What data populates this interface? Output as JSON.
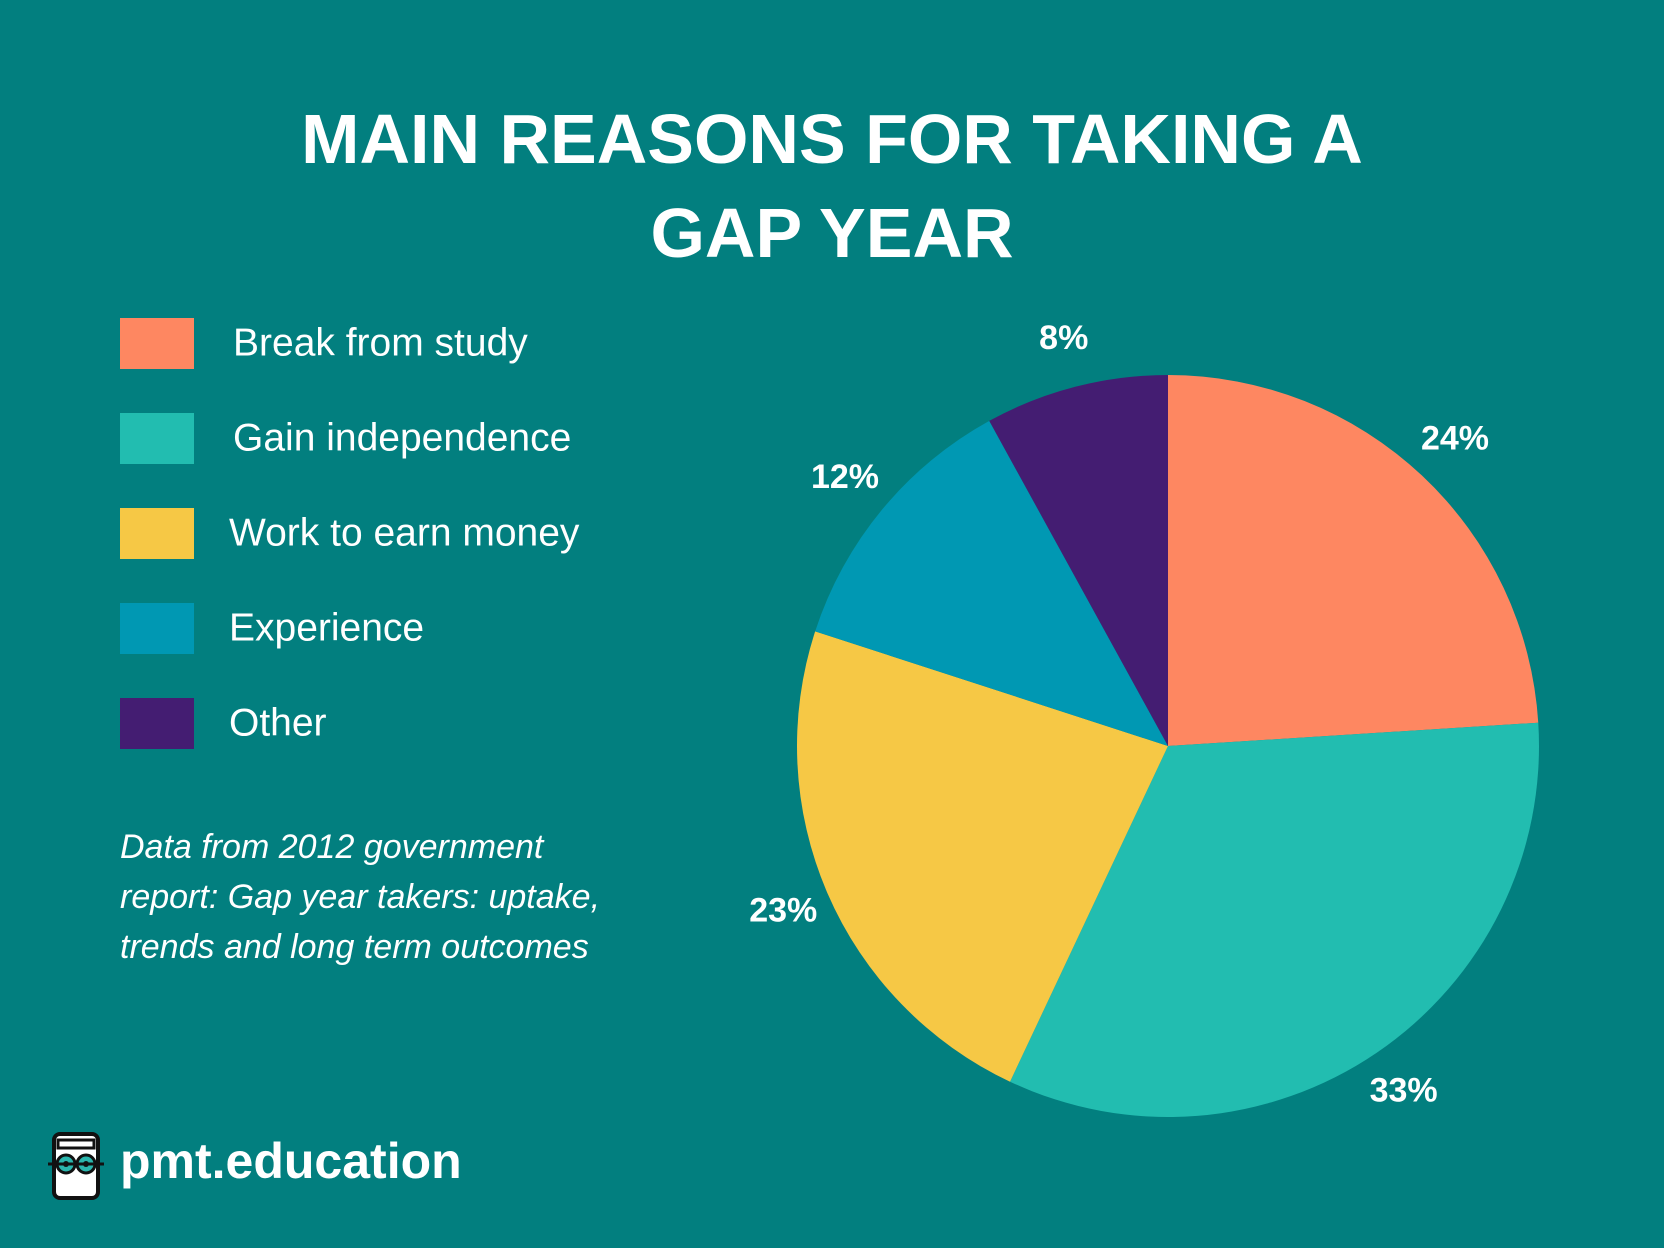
{
  "chart_data": {
    "type": "pie",
    "title": "MAIN REASONS FOR TAKING A GAP YEAR",
    "categories": [
      "Break from study",
      "Gain independence",
      "Work to earn money",
      "Experience",
      "Other"
    ],
    "values": [
      24,
      33,
      23,
      12,
      8
    ],
    "value_labels": [
      "24%",
      "33%",
      "23%",
      "12%",
      "8%"
    ],
    "colors": [
      "#fe8761",
      "#22bdb0",
      "#f6c845",
      "#0098b3",
      "#441d72"
    ],
    "legend": "left",
    "note": "Data from 2012 government report: Gap year takers: uptake, trends and long term outcomes"
  },
  "brand": "pmt.education"
}
